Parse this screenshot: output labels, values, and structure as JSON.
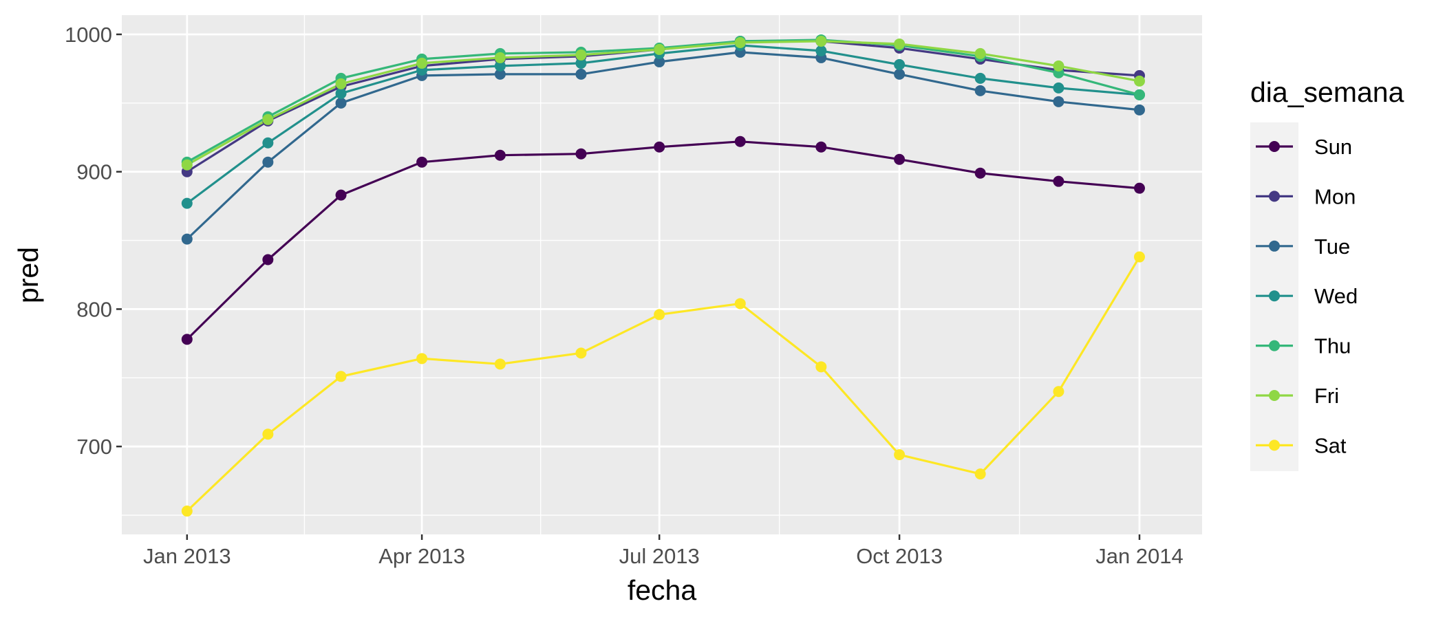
{
  "chart_data": {
    "type": "line",
    "xlabel": "fecha",
    "ylabel": "pred",
    "x": [
      "2013-01-01",
      "2013-02-01",
      "2013-03-01",
      "2013-04-01",
      "2013-05-01",
      "2013-06-01",
      "2013-07-01",
      "2013-08-01",
      "2013-09-01",
      "2013-10-01",
      "2013-11-01",
      "2013-12-01",
      "2014-01-01"
    ],
    "xlim": [
      "2012-12-07",
      "2014-01-25"
    ],
    "ylim": [
      636,
      1014
    ],
    "x_ticks": [
      {
        "value": "2013-01-01",
        "label": "Jan 2013"
      },
      {
        "value": "2013-04-01",
        "label": "Apr 2013"
      },
      {
        "value": "2013-07-01",
        "label": "Jul 2013"
      },
      {
        "value": "2013-10-01",
        "label": "Oct 2013"
      },
      {
        "value": "2014-01-01",
        "label": "Jan 2014"
      }
    ],
    "y_ticks": [
      700,
      800,
      900,
      1000
    ],
    "grid": true,
    "legend": {
      "title": "dia_semana",
      "placement": "right"
    },
    "series": [
      {
        "name": "Sun",
        "color": "#440154",
        "values": [
          778,
          836,
          883,
          907,
          912,
          913,
          918,
          922,
          918,
          909,
          899,
          893,
          888
        ]
      },
      {
        "name": "Mon",
        "color": "#443983",
        "values": [
          900,
          937,
          962,
          977,
          982,
          984,
          989,
          995,
          995,
          990,
          982,
          974,
          970
        ]
      },
      {
        "name": "Tue",
        "color": "#31688E",
        "values": [
          851,
          907,
          950,
          970,
          971,
          971,
          980,
          987,
          983,
          971,
          959,
          951,
          945
        ]
      },
      {
        "name": "Wed",
        "color": "#21908C",
        "values": [
          877,
          921,
          957,
          974,
          977,
          979,
          986,
          992,
          988,
          978,
          968,
          961,
          956
        ]
      },
      {
        "name": "Thu",
        "color": "#35B779",
        "values": [
          907,
          940,
          968,
          982,
          986,
          987,
          990,
          995,
          996,
          992,
          984,
          972,
          956
        ]
      },
      {
        "name": "Fri",
        "color": "#8FD744",
        "values": [
          905,
          938,
          964,
          979,
          983,
          985,
          989,
          994,
          995,
          993,
          986,
          977,
          966
        ]
      },
      {
        "name": "Sat",
        "color": "#FDE725",
        "values": [
          653,
          709,
          751,
          764,
          760,
          768,
          796,
          804,
          758,
          694,
          680,
          740,
          838
        ]
      }
    ]
  }
}
